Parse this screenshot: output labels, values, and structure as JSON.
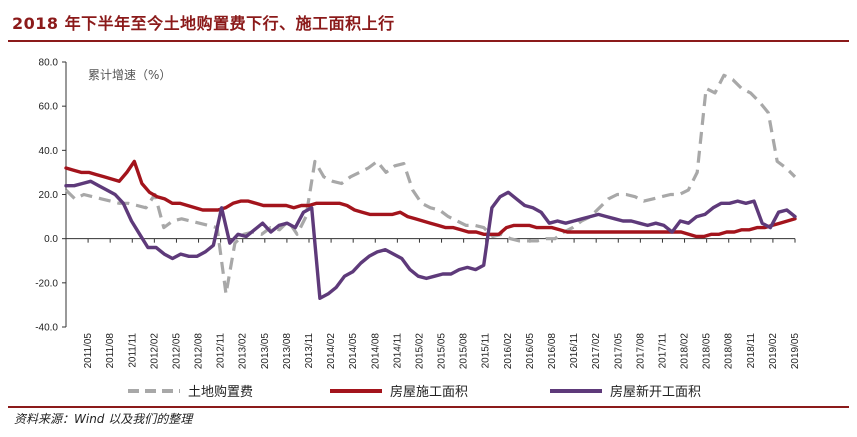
{
  "header": {
    "title": "2018 年下半年至今土地购置费下行、施工面积上行"
  },
  "footer": {
    "source": "资料来源：Wind 以及我们的整理"
  },
  "chart_data": {
    "type": "line",
    "title": "2018 年下半年至今土地购置费下行、施工面积上行",
    "ylabel": "累计增速（%）",
    "xlabel": "",
    "ylim": [
      -40,
      80
    ],
    "yticks": [
      -40,
      -20,
      0,
      20,
      40,
      60,
      80
    ],
    "ytick_labels": [
      "-40.0",
      "-20.0",
      "0.0",
      "20.0",
      "40.0",
      "60.0",
      "80.0"
    ],
    "xtick_labels": [
      "2011/05",
      "2011/08",
      "2011/11",
      "2012/02",
      "2012/05",
      "2012/08",
      "2012/11",
      "2013/02",
      "2013/05",
      "2013/08",
      "2013/11",
      "2014/02",
      "2014/05",
      "2014/08",
      "2014/11",
      "2015/02",
      "2015/05",
      "2015/08",
      "2015/11",
      "2016/02",
      "2016/05",
      "2016/08",
      "2016/11",
      "2017/02",
      "2017/05",
      "2017/08",
      "2017/11",
      "2018/02",
      "2018/05",
      "2018/08",
      "2018/11",
      "2019/02",
      "2019/05"
    ],
    "x_start": "2011/02",
    "x_end": "2019/05",
    "series": [
      {
        "name": "土地购置费",
        "color": "#a8a8a8",
        "style": "dashed",
        "values": [
          22,
          18,
          20,
          19,
          18,
          17,
          16,
          16,
          15,
          14,
          20,
          5,
          8,
          9,
          8,
          7,
          6,
          5,
          -25,
          -2,
          2,
          3,
          2,
          5,
          4,
          8,
          2,
          10,
          35,
          28,
          26,
          25,
          28,
          30,
          32,
          35,
          30,
          33,
          34,
          22,
          16,
          14,
          13,
          10,
          8,
          6,
          6,
          5,
          1,
          2,
          0,
          -1,
          -1,
          -1,
          0,
          0,
          3,
          5,
          8,
          10,
          14,
          18,
          20,
          20,
          19,
          17,
          18,
          19,
          20,
          20,
          22,
          30,
          68,
          66,
          74,
          72,
          68,
          66,
          62,
          57,
          35,
          32,
          28
        ]
      },
      {
        "name": "房屋施工面积",
        "color": "#a3141c",
        "style": "solid",
        "values": [
          32,
          31,
          30,
          30,
          29,
          28,
          27,
          26,
          30,
          35,
          25,
          21,
          19,
          18,
          16,
          16,
          15,
          14,
          13,
          13,
          13,
          14,
          16,
          17,
          17,
          16,
          15,
          15,
          15,
          15,
          14,
          15,
          15,
          16,
          16,
          16,
          16,
          15,
          13,
          12,
          11,
          11,
          11,
          11,
          12,
          10,
          9,
          8,
          7,
          6,
          5,
          5,
          4,
          3,
          3,
          2,
          2,
          2,
          5,
          6,
          6,
          6,
          5,
          5,
          5,
          4,
          3,
          3,
          3,
          3,
          3,
          3,
          3,
          3,
          3,
          3,
          3,
          3,
          3,
          3,
          3,
          3,
          2,
          1,
          1,
          2,
          2,
          3,
          3,
          4,
          4,
          5,
          5,
          6,
          7,
          8,
          9
        ]
      },
      {
        "name": "房屋新开工面积",
        "color": "#5e3a7a",
        "style": "solid",
        "values": [
          24,
          24,
          25,
          26,
          24,
          22,
          20,
          16,
          8,
          2,
          -4,
          -4,
          -7,
          -9,
          -7,
          -8,
          -8,
          -6,
          -3,
          14,
          -2,
          2,
          1,
          4,
          7,
          3,
          6,
          7,
          5,
          12,
          14,
          -27,
          -25,
          -22,
          -17,
          -15,
          -11,
          -8,
          -6,
          -5,
          -7,
          -9,
          -14,
          -17,
          -18,
          -17,
          -16,
          -16,
          -14,
          -13,
          -14,
          -12,
          14,
          19,
          21,
          18,
          15,
          14,
          12,
          7,
          8,
          7,
          8,
          9,
          10,
          11,
          10,
          9,
          8,
          8,
          7,
          6,
          7,
          6,
          3,
          8,
          7,
          10,
          11,
          14,
          16,
          16,
          17,
          16,
          17,
          7,
          5,
          12,
          13,
          10
        ]
      }
    ],
    "legend": [
      "土地购置费",
      "房屋施工面积",
      "房屋新开工面积"
    ],
    "legend_position": "bottom",
    "grid": false
  }
}
